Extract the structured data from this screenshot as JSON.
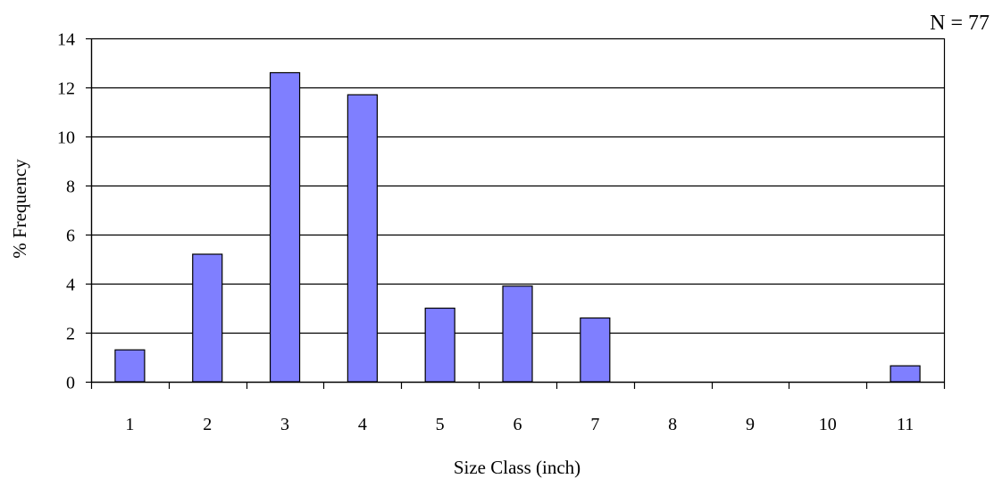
{
  "chart_data": {
    "type": "bar",
    "annotation": "N = 77",
    "xlabel": "Size Class (inch)",
    "ylabel": "% Frequency",
    "categories": [
      "1",
      "2",
      "3",
      "4",
      "5",
      "6",
      "7",
      "8",
      "9",
      "10",
      "11"
    ],
    "values": [
      1.3,
      5.2,
      12.6,
      11.7,
      3.0,
      3.9,
      2.6,
      0,
      0,
      0,
      0.65
    ],
    "ylim": [
      0,
      14
    ],
    "yticks": [
      0,
      2,
      4,
      6,
      8,
      10,
      12,
      14
    ],
    "grid": true,
    "legend": "none",
    "colors": {
      "bar_fill": "#7f7fff",
      "bar_stroke": "#000000",
      "grid": "#000000"
    }
  }
}
